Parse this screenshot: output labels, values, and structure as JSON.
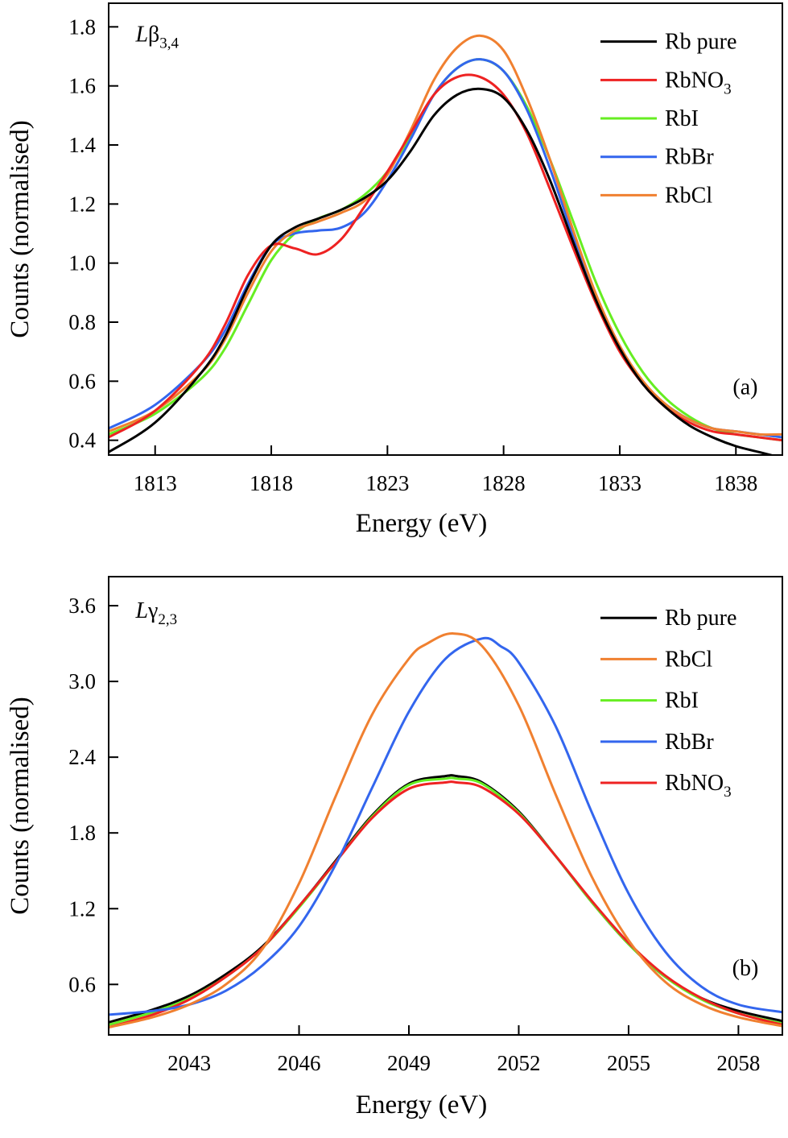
{
  "chart_data": [
    {
      "type": "line",
      "panel_label": "(a)",
      "title_main": "Lβ",
      "title_sub": "3,4",
      "xlabel": "Energy (eV)",
      "ylabel": "Counts (normalised)",
      "xlim": [
        1811,
        1840
      ],
      "ylim": [
        0.35,
        1.88
      ],
      "xticks": [
        1813,
        1818,
        1823,
        1828,
        1833,
        1838
      ],
      "yticks": [
        0.4,
        0.6,
        0.8,
        1.0,
        1.2,
        1.4,
        1.6,
        1.8
      ],
      "ytick_labels": [
        "0.4",
        "0.6",
        "0.8",
        "1.0",
        "1.2",
        "1.4",
        "1.6",
        "1.8"
      ],
      "legend": [
        {
          "label": "Rb pure",
          "label_sub": "",
          "color": "#000000"
        },
        {
          "label": "RbNO",
          "label_sub": "3",
          "color": "#ee2222"
        },
        {
          "label": "RbI",
          "label_sub": "",
          "color": "#66ee22"
        },
        {
          "label": "RbBr",
          "label_sub": "",
          "color": "#3366ee"
        },
        {
          "label": "RbCl",
          "label_sub": "",
          "color": "#f08030"
        }
      ],
      "draw_order": [
        2,
        3,
        4,
        1,
        0
      ],
      "series": [
        {
          "name": "Rb pure",
          "color": "#000000",
          "x": [
            1811,
            1813,
            1815,
            1816,
            1817,
            1818,
            1819,
            1820,
            1821,
            1822,
            1823,
            1824,
            1825,
            1826,
            1827,
            1828,
            1829,
            1830,
            1831,
            1832,
            1833,
            1834,
            1835,
            1836,
            1837,
            1838,
            1839,
            1840
          ],
          "y": [
            0.36,
            0.46,
            0.63,
            0.75,
            0.92,
            1.06,
            1.12,
            1.15,
            1.18,
            1.22,
            1.28,
            1.38,
            1.5,
            1.57,
            1.59,
            1.56,
            1.45,
            1.28,
            1.07,
            0.87,
            0.71,
            0.59,
            0.51,
            0.45,
            0.41,
            0.38,
            0.36,
            0.34
          ]
        },
        {
          "name": "RbNO3",
          "color": "#ee2222",
          "x": [
            1811,
            1813,
            1815,
            1816,
            1817,
            1818,
            1819,
            1820,
            1821,
            1822,
            1823,
            1824,
            1825,
            1826,
            1827,
            1828,
            1829,
            1830,
            1831,
            1832,
            1833,
            1834,
            1835,
            1836,
            1837,
            1838,
            1839,
            1840
          ],
          "y": [
            0.41,
            0.5,
            0.66,
            0.79,
            0.96,
            1.06,
            1.05,
            1.03,
            1.08,
            1.19,
            1.31,
            1.44,
            1.57,
            1.63,
            1.63,
            1.57,
            1.44,
            1.25,
            1.05,
            0.86,
            0.7,
            0.59,
            0.51,
            0.46,
            0.43,
            0.42,
            0.41,
            0.4
          ]
        },
        {
          "name": "RbI",
          "color": "#66ee22",
          "x": [
            1811,
            1813,
            1815,
            1816,
            1817,
            1818,
            1819,
            1820,
            1821,
            1822,
            1823,
            1824,
            1825,
            1826,
            1827,
            1828,
            1829,
            1830,
            1831,
            1832,
            1833,
            1834,
            1835,
            1836,
            1837,
            1838,
            1839,
            1840
          ],
          "y": [
            0.42,
            0.49,
            0.61,
            0.71,
            0.86,
            1.01,
            1.1,
            1.15,
            1.18,
            1.23,
            1.31,
            1.43,
            1.57,
            1.66,
            1.69,
            1.65,
            1.53,
            1.35,
            1.14,
            0.93,
            0.76,
            0.63,
            0.54,
            0.48,
            0.44,
            0.42,
            0.41,
            0.4
          ]
        },
        {
          "name": "RbBr",
          "color": "#3366ee",
          "x": [
            1811,
            1813,
            1815,
            1816,
            1817,
            1818,
            1819,
            1820,
            1821,
            1822,
            1823,
            1824,
            1825,
            1826,
            1827,
            1828,
            1829,
            1830,
            1831,
            1832,
            1833,
            1834,
            1835,
            1836,
            1837,
            1838,
            1839,
            1840
          ],
          "y": [
            0.44,
            0.52,
            0.66,
            0.77,
            0.93,
            1.06,
            1.1,
            1.11,
            1.12,
            1.17,
            1.28,
            1.42,
            1.57,
            1.66,
            1.69,
            1.65,
            1.52,
            1.32,
            1.09,
            0.88,
            0.71,
            0.59,
            0.52,
            0.47,
            0.44,
            0.43,
            0.42,
            0.41
          ]
        },
        {
          "name": "RbCl",
          "color": "#f08030",
          "x": [
            1811,
            1813,
            1815,
            1816,
            1817,
            1818,
            1819,
            1820,
            1821,
            1822,
            1823,
            1824,
            1825,
            1826,
            1827,
            1828,
            1829,
            1830,
            1831,
            1832,
            1833,
            1834,
            1835,
            1836,
            1837,
            1838,
            1839,
            1840
          ],
          "y": [
            0.43,
            0.5,
            0.63,
            0.74,
            0.9,
            1.04,
            1.11,
            1.14,
            1.17,
            1.21,
            1.3,
            1.45,
            1.62,
            1.73,
            1.77,
            1.72,
            1.56,
            1.35,
            1.11,
            0.89,
            0.72,
            0.6,
            0.52,
            0.47,
            0.44,
            0.43,
            0.42,
            0.42
          ]
        }
      ]
    },
    {
      "type": "line",
      "panel_label": "(b)",
      "title_main": "Lγ",
      "title_sub": "2,3",
      "xlabel": "Energy (eV)",
      "ylabel": "Counts (normalised)",
      "xlim": [
        2040.8,
        2059.2
      ],
      "ylim": [
        0.2,
        3.83
      ],
      "xticks": [
        2043,
        2046,
        2049,
        2052,
        2055,
        2058
      ],
      "yticks": [
        0.6,
        1.2,
        1.8,
        2.4,
        3.0,
        3.6
      ],
      "ytick_labels": [
        "0.6",
        "1.2",
        "1.8",
        "2.4",
        "3.0",
        "3.6"
      ],
      "legend": [
        {
          "label": "Rb pure",
          "label_sub": "",
          "color": "#000000"
        },
        {
          "label": "RbCl",
          "label_sub": "",
          "color": "#f08030"
        },
        {
          "label": "RbI",
          "label_sub": "",
          "color": "#66ee22"
        },
        {
          "label": "RbBr",
          "label_sub": "",
          "color": "#3366ee"
        },
        {
          "label": "RbNO",
          "label_sub": "3",
          "color": "#ee2222"
        }
      ],
      "draw_order": [
        0,
        2,
        4,
        3,
        1
      ],
      "series": [
        {
          "name": "Rb pure",
          "color": "#000000",
          "x": [
            2040.8,
            2042,
            2043,
            2044,
            2045,
            2046,
            2047,
            2048,
            2049,
            2050,
            2050.3,
            2051,
            2052,
            2053,
            2054,
            2055,
            2056,
            2057,
            2058,
            2059.2
          ],
          "y": [
            0.3,
            0.4,
            0.51,
            0.68,
            0.9,
            1.22,
            1.58,
            1.94,
            2.19,
            2.25,
            2.25,
            2.2,
            1.97,
            1.62,
            1.25,
            0.92,
            0.66,
            0.49,
            0.39,
            0.31
          ]
        },
        {
          "name": "RbCl",
          "color": "#f08030",
          "x": [
            2040.8,
            2042,
            2043,
            2044,
            2045,
            2046,
            2047,
            2048,
            2049,
            2049.5,
            2050.2,
            2051,
            2052,
            2053,
            2054,
            2055,
            2056,
            2057,
            2058,
            2059.2
          ],
          "y": [
            0.26,
            0.34,
            0.44,
            0.6,
            0.88,
            1.4,
            2.09,
            2.74,
            3.18,
            3.3,
            3.38,
            3.28,
            2.81,
            2.11,
            1.45,
            0.95,
            0.62,
            0.44,
            0.34,
            0.27
          ]
        },
        {
          "name": "RbI",
          "color": "#66ee22",
          "x": [
            2040.8,
            2042,
            2043,
            2044,
            2045,
            2046,
            2047,
            2048,
            2049,
            2050,
            2050.3,
            2051,
            2052,
            2053,
            2054,
            2055,
            2056,
            2057,
            2058,
            2059.2
          ],
          "y": [
            0.28,
            0.38,
            0.49,
            0.66,
            0.89,
            1.21,
            1.57,
            1.93,
            2.18,
            2.23,
            2.23,
            2.19,
            1.96,
            1.62,
            1.25,
            0.92,
            0.66,
            0.48,
            0.37,
            0.29
          ]
        },
        {
          "name": "RbBr",
          "color": "#3366ee",
          "x": [
            2040.8,
            2042,
            2043,
            2044,
            2045,
            2046,
            2047,
            2048,
            2049,
            2050,
            2051,
            2051.5,
            2052,
            2053,
            2054,
            2055,
            2056,
            2057,
            2058,
            2059.2
          ],
          "y": [
            0.36,
            0.39,
            0.44,
            0.55,
            0.75,
            1.06,
            1.55,
            2.16,
            2.76,
            3.18,
            3.34,
            3.28,
            3.15,
            2.65,
            1.96,
            1.32,
            0.86,
            0.58,
            0.44,
            0.38
          ]
        },
        {
          "name": "RbNO3",
          "color": "#ee2222",
          "x": [
            2040.8,
            2042,
            2043,
            2044,
            2045,
            2046,
            2047,
            2048,
            2049,
            2050,
            2050.3,
            2051,
            2052,
            2053,
            2054,
            2055,
            2056,
            2057,
            2058,
            2059.2
          ],
          "y": [
            0.26,
            0.36,
            0.48,
            0.66,
            0.89,
            1.22,
            1.57,
            1.92,
            2.15,
            2.2,
            2.2,
            2.16,
            1.95,
            1.62,
            1.26,
            0.93,
            0.67,
            0.49,
            0.37,
            0.28
          ]
        }
      ]
    }
  ]
}
